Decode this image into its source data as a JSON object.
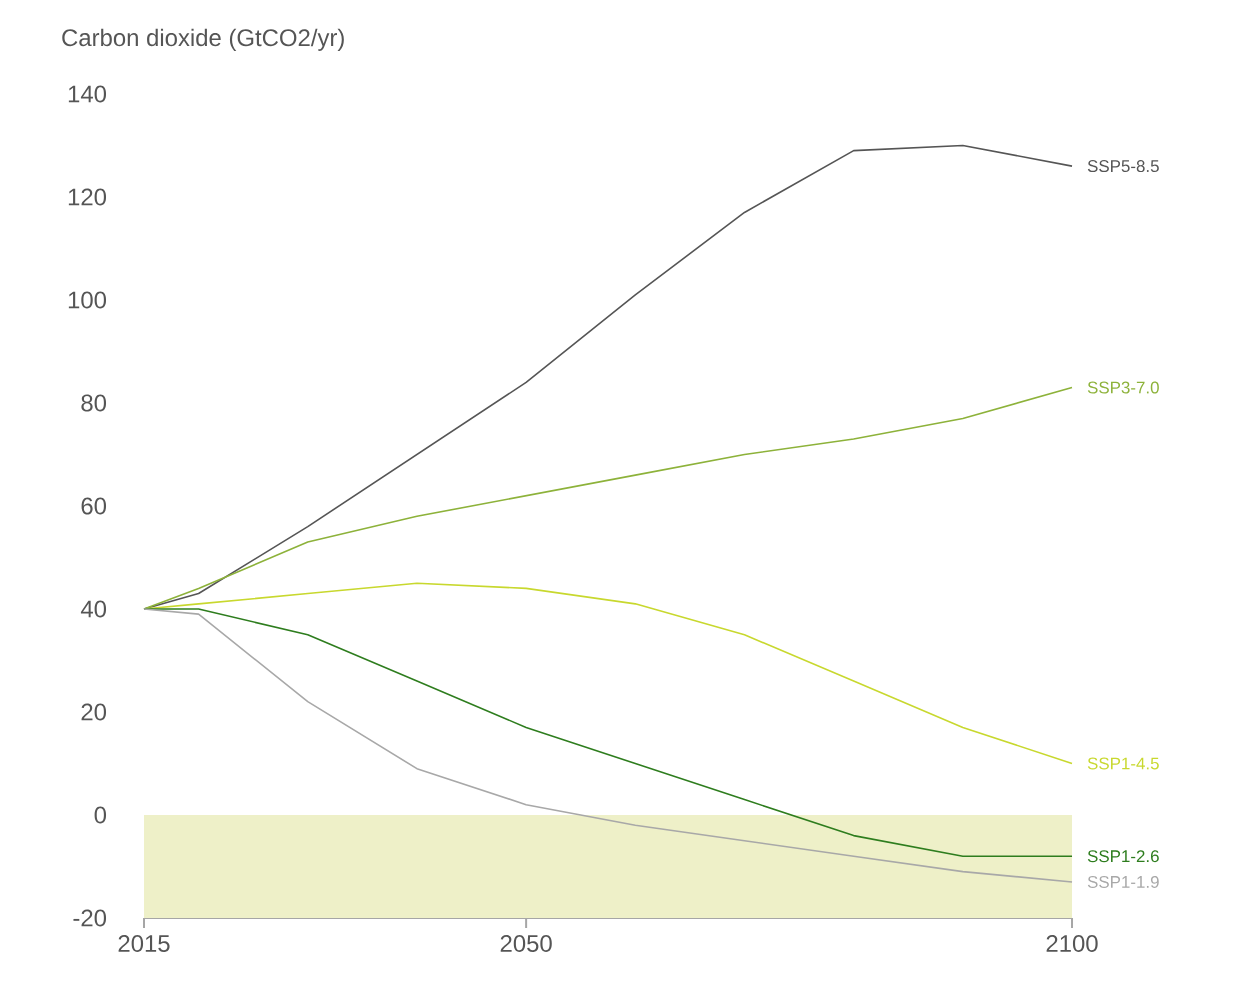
{
  "chart_data": {
    "type": "line",
    "ylabel": "Carbon dioxide (GtCO2/yr)",
    "x": [
      2015,
      2020,
      2030,
      2040,
      2050,
      2060,
      2070,
      2080,
      2090,
      2100
    ],
    "xlim": [
      2015,
      2100
    ],
    "xticks": [
      2015,
      2050,
      2100
    ],
    "ylim": [
      -20,
      140
    ],
    "yticks": [
      -20,
      0,
      20,
      40,
      60,
      80,
      100,
      120,
      140
    ],
    "bands": [
      {
        "axis": "y",
        "from": -20,
        "to": 0,
        "color": "#eef0c8"
      }
    ],
    "series": [
      {
        "name": "SSP5-8.5",
        "color": "#555555",
        "values": [
          40,
          43,
          56,
          70,
          84,
          101,
          117,
          129,
          130,
          126
        ]
      },
      {
        "name": "SSP3-7.0",
        "color": "#8db23a",
        "values": [
          40,
          44,
          53,
          58,
          62,
          66,
          70,
          73,
          77,
          83
        ]
      },
      {
        "name": "SSP1-4.5",
        "color": "#c8d82e",
        "values": [
          40,
          41,
          43,
          45,
          44,
          41,
          35,
          26,
          17,
          10
        ]
      },
      {
        "name": "SSP1-2.6",
        "color": "#2e7d1e",
        "values": [
          40,
          40,
          35,
          26,
          17,
          10,
          3,
          -4,
          -8,
          -8
        ]
      },
      {
        "name": "SSP1-1.9",
        "color": "#a8a8a8",
        "values": [
          40,
          39,
          22,
          9,
          2,
          -2,
          -5,
          -8,
          -11,
          -13
        ]
      }
    ],
    "grid": false,
    "marker": "none"
  }
}
